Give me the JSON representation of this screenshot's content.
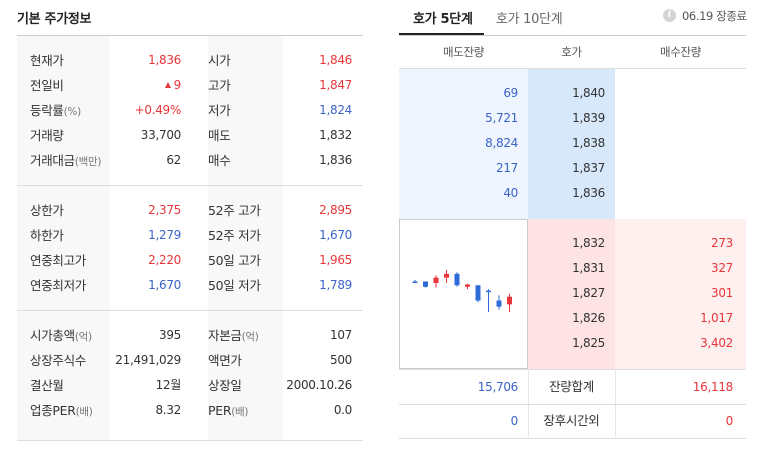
{
  "left_panel": {
    "title": "기본 주가정보",
    "block1": [
      {
        "l": "현재가",
        "lsub": "",
        "v": "1,836",
        "vc": "red",
        "l2": "시가",
        "l2sub": "",
        "v2": "1,846",
        "v2c": "red"
      },
      {
        "l": "전일비",
        "lsub": "",
        "v": "9",
        "vc": "red",
        "arrow": "up",
        "l2": "고가",
        "l2sub": "",
        "v2": "1,847",
        "v2c": "red"
      },
      {
        "l": "등락률",
        "lsub": "(%)",
        "v": "+0.49%",
        "vc": "red",
        "l2": "저가",
        "l2sub": "",
        "v2": "1,824",
        "v2c": "blue"
      },
      {
        "l": "거래량",
        "lsub": "",
        "v": "33,700",
        "vc": "",
        "l2": "매도",
        "l2sub": "",
        "v2": "1,832",
        "v2c": ""
      },
      {
        "l": "거래대금",
        "lsub": "(백만)",
        "v": "62",
        "vc": "",
        "l2": "매수",
        "l2sub": "",
        "v2": "1,836",
        "v2c": ""
      }
    ],
    "block2": [
      {
        "l": "상한가",
        "lsub": "",
        "v": "2,375",
        "vc": "red",
        "l2": "52주 고가",
        "l2sub": "",
        "v2": "2,895",
        "v2c": "red"
      },
      {
        "l": "하한가",
        "lsub": "",
        "v": "1,279",
        "vc": "blue",
        "l2": "52주 저가",
        "l2sub": "",
        "v2": "1,670",
        "v2c": "blue"
      },
      {
        "l": "연중최고가",
        "lsub": "",
        "v": "2,220",
        "vc": "red",
        "l2": "50일 고가",
        "l2sub": "",
        "v2": "1,965",
        "v2c": "red"
      },
      {
        "l": "연중최저가",
        "lsub": "",
        "v": "1,670",
        "vc": "blue",
        "l2": "50일 저가",
        "l2sub": "",
        "v2": "1,789",
        "v2c": "blue"
      }
    ],
    "block3": [
      {
        "l": "시가총액",
        "lsub": "(억)",
        "v": "395",
        "vc": "",
        "l2": "자본금",
        "l2sub": "(억)",
        "v2": "107",
        "v2c": ""
      },
      {
        "l": "상장주식수",
        "lsub": "",
        "v": "21,491,029",
        "vc": "",
        "l2": "액면가",
        "l2sub": "",
        "v2": "500",
        "v2c": ""
      },
      {
        "l": "결산월",
        "lsub": "",
        "v": "12월",
        "vc": "",
        "l2": "상장일",
        "l2sub": "",
        "v2": "2000.10.26",
        "v2c": ""
      },
      {
        "l": "업종PER",
        "lsub": "(배)",
        "v": "8.32",
        "vc": "",
        "l2": "PER",
        "l2sub": "(배)",
        "v2": "0.0",
        "v2c": ""
      }
    ]
  },
  "right_panel": {
    "tabs": [
      {
        "label": "호가 5단계",
        "active": true
      },
      {
        "label": "호가 10단계",
        "active": false
      }
    ],
    "info_icon": "i",
    "status_text": "06.19 장종료",
    "headers": {
      "ask": "매도잔량",
      "price": "호가",
      "bid": "매수잔량"
    },
    "asks": [
      {
        "qty": "69",
        "price": "1,840"
      },
      {
        "qty": "5,721",
        "price": "1,839"
      },
      {
        "qty": "8,824",
        "price": "1,838"
      },
      {
        "qty": "217",
        "price": "1,837"
      },
      {
        "qty": "40",
        "price": "1,836"
      }
    ],
    "bids": [
      {
        "price": "1,832",
        "qty": "273"
      },
      {
        "price": "1,831",
        "qty": "327"
      },
      {
        "price": "1,827",
        "qty": "301"
      },
      {
        "price": "1,826",
        "qty": "1,017"
      },
      {
        "price": "1,825",
        "qty": "3,402"
      }
    ],
    "total": {
      "ask": "15,706",
      "label": "잔량합계",
      "bid": "16,118"
    },
    "after_hours": {
      "ask": "0",
      "label": "장후시간외",
      "bid": "0"
    },
    "mini_chart": {
      "up_color": "#e8363b",
      "down_color": "#2f6ad9",
      "candles": [
        {
          "o": 1840,
          "h": 1842,
          "l": 1838,
          "c": 1838
        },
        {
          "o": 1840,
          "h": 1840,
          "l": 1832,
          "c": 1833
        },
        {
          "o": 1838,
          "h": 1848,
          "l": 1832,
          "c": 1845
        },
        {
          "o": 1845,
          "h": 1855,
          "l": 1838,
          "c": 1850
        },
        {
          "o": 1850,
          "h": 1852,
          "l": 1833,
          "c": 1835
        },
        {
          "o": 1833,
          "h": 1837,
          "l": 1830,
          "c": 1836
        },
        {
          "o": 1835,
          "h": 1835,
          "l": 1813,
          "c": 1815
        },
        {
          "o": 1828,
          "h": 1830,
          "l": 1800,
          "c": 1827
        },
        {
          "o": 1815,
          "h": 1822,
          "l": 1803,
          "c": 1807
        },
        {
          "o": 1810,
          "h": 1824,
          "l": 1800,
          "c": 1820
        }
      ]
    }
  }
}
